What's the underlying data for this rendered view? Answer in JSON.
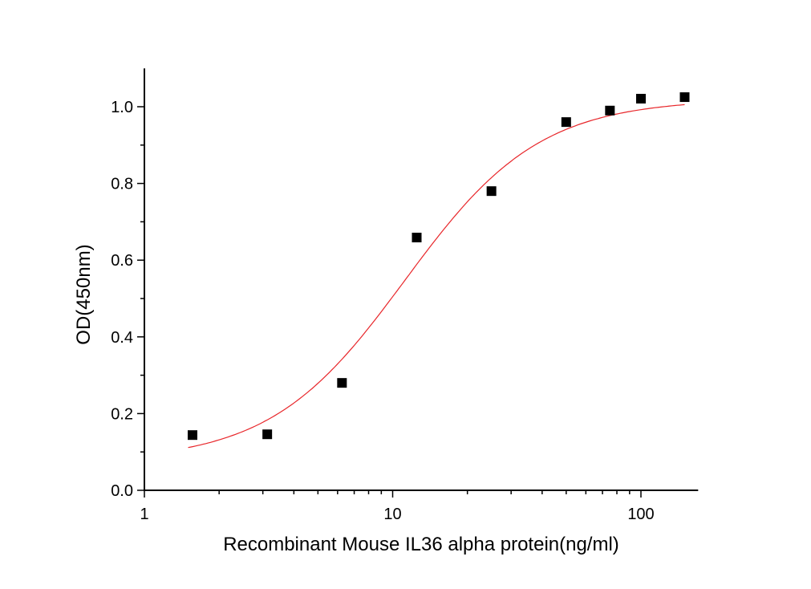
{
  "chart_data": {
    "type": "scatter",
    "title": "",
    "xlabel": "Recombinant  Mouse IL36 alpha protein(ng/ml)",
    "ylabel": "OD(450nm)",
    "xscale": "log",
    "xlim": [
      1,
      170
    ],
    "ylim": [
      0,
      1.1
    ],
    "xticks": [
      {
        "v": 1,
        "label": "1"
      },
      {
        "v": 10,
        "label": "10"
      },
      {
        "v": 100,
        "label": "100"
      }
    ],
    "yticks": [
      {
        "v": 0,
        "label": "0.0"
      },
      {
        "v": 0.2,
        "label": "0.2"
      },
      {
        "v": 0.4,
        "label": "0.4"
      },
      {
        "v": 0.6,
        "label": "0.6"
      },
      {
        "v": 0.8,
        "label": "0.8"
      },
      {
        "v": 1.0,
        "label": "1.0"
      }
    ],
    "grid": false,
    "series": [
      {
        "name": "data",
        "marker": "square",
        "color": "#000000",
        "x": [
          1.5625,
          3.125,
          6.25,
          12.5,
          25,
          50,
          75,
          100,
          150
        ],
        "y": [
          0.144,
          0.146,
          0.28,
          0.659,
          0.78,
          0.96,
          0.99,
          1.021,
          1.025
        ]
      },
      {
        "name": "fit",
        "type": "line",
        "color": "#e8262a",
        "model": "4PL",
        "bottom": 0.075,
        "top": 1.02,
        "ec50": 11.2,
        "hill": 1.6,
        "xrange": [
          1.5,
          150
        ]
      }
    ]
  }
}
